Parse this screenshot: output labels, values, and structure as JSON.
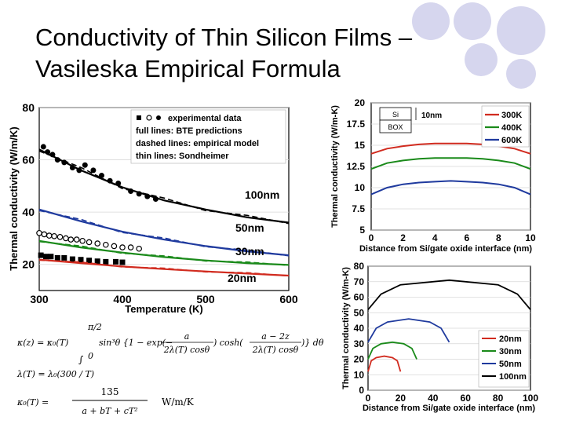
{
  "title": {
    "line1": "Conductivity of Thin Silicon Films –",
    "line2": "Vasileska Empirical Formula"
  },
  "chart_data": [
    {
      "type": "line",
      "xlabel": "Temperature (K)",
      "ylabel": "Thermal conductivity (W/m/K)",
      "xlim": [
        300,
        600
      ],
      "ylim": [
        10,
        80
      ],
      "xticks": [
        "300",
        "400",
        "500",
        "600"
      ],
      "yticks": [
        "20",
        "40",
        "60",
        "80"
      ],
      "legend_lines": [
        "experimental data",
        "full lines: BTE predictions",
        "dashed lines: empirical model",
        "thin lines: Sondheimer"
      ],
      "x": [
        300,
        350,
        400,
        450,
        500,
        550,
        600
      ],
      "series": [
        {
          "name": "100nm",
          "color": "#000000",
          "values": [
            64,
            56,
            49.5,
            44.5,
            41,
            38,
            36
          ]
        },
        {
          "name": "50nm",
          "color": "#1f3a9e",
          "values": [
            41,
            36.5,
            32.5,
            29.5,
            27,
            25,
            23.5
          ]
        },
        {
          "name": "30nm",
          "color": "#1a8a1a",
          "values": [
            29,
            26.5,
            24.5,
            22.8,
            21.5,
            20.5,
            19.8
          ]
        },
        {
          "name": "20nm",
          "color": "#d12b1f",
          "values": [
            21.8,
            20.5,
            19.2,
            18.2,
            17.3,
            16.5,
            15.7
          ]
        }
      ],
      "experimental": [
        {
          "marker": "filled-circle",
          "x": [
            305,
            310,
            316,
            322,
            330,
            340,
            348,
            355,
            365,
            375,
            385,
            395,
            410,
            420,
            430,
            440
          ],
          "y": [
            65,
            63,
            62,
            60,
            59,
            57,
            56,
            58,
            56,
            54,
            52,
            51,
            48,
            47,
            46,
            45
          ]
        },
        {
          "marker": "open-circle",
          "x": [
            300,
            306,
            312,
            318,
            325,
            332,
            338,
            345,
            352,
            360,
            370,
            380,
            390,
            400,
            410,
            420
          ],
          "y": [
            32,
            31.5,
            31,
            30.8,
            30.5,
            30,
            29.5,
            29.5,
            29,
            28.5,
            28,
            27.5,
            27,
            26.5,
            26.5,
            26
          ]
        },
        {
          "marker": "filled-square",
          "x": [
            302,
            308,
            314,
            322,
            330,
            340,
            350,
            360,
            370,
            380,
            392,
            400
          ],
          "y": [
            23.5,
            23,
            23,
            22.5,
            22.5,
            22,
            21.8,
            21.5,
            21.2,
            21,
            21,
            20.8
          ]
        }
      ]
    },
    {
      "type": "line",
      "xlabel": "Distance from Si/gate oxide interface (nm)",
      "ylabel": "Thermal conductivity (W/m-K)",
      "xlim": [
        0,
        10
      ],
      "ylim": [
        5,
        20
      ],
      "xticks": [
        "0",
        "2",
        "4",
        "6",
        "8",
        "10"
      ],
      "yticks": [
        "5",
        "7.5",
        "10",
        "12.5",
        "15",
        "17.5",
        "20"
      ],
      "inset": {
        "layer1": "Si",
        "layer2": "BOX",
        "thickness": "10nm"
      },
      "x": [
        0,
        1,
        2,
        3,
        4,
        5,
        6,
        7,
        8,
        9,
        10
      ],
      "series": [
        {
          "name": "300K",
          "color": "#d12b1f",
          "values": [
            14.0,
            14.6,
            14.9,
            15.1,
            15.2,
            15.2,
            15.2,
            15.1,
            14.9,
            14.6,
            14.0
          ]
        },
        {
          "name": "400K",
          "color": "#1a8a1a",
          "values": [
            12.2,
            12.9,
            13.2,
            13.4,
            13.5,
            13.5,
            13.5,
            13.4,
            13.2,
            12.9,
            12.2
          ]
        },
        {
          "name": "600K",
          "color": "#1f3a9e",
          "values": [
            9.2,
            10.0,
            10.4,
            10.6,
            10.7,
            10.8,
            10.7,
            10.6,
            10.4,
            10.0,
            9.2
          ]
        }
      ]
    },
    {
      "type": "line",
      "xlabel": "Distance from Si/gate oxide interface (nm)",
      "ylabel": "Thermal conductivity (W/m-K)",
      "xlim": [
        0,
        100
      ],
      "ylim": [
        0,
        80
      ],
      "xticks": [
        "0",
        "20",
        "40",
        "60",
        "80",
        "100"
      ],
      "yticks": [
        "0",
        "10",
        "20",
        "30",
        "40",
        "50",
        "60",
        "70",
        "80"
      ],
      "series": [
        {
          "name": "20nm",
          "color": "#d12b1f",
          "x": [
            0,
            2,
            5,
            10,
            15,
            18,
            20
          ],
          "values": [
            12,
            19,
            21,
            22,
            21,
            19,
            12
          ]
        },
        {
          "name": "30nm",
          "color": "#1a8a1a",
          "x": [
            0,
            3,
            8,
            15,
            22,
            27,
            30
          ],
          "values": [
            20,
            27,
            30,
            31,
            30,
            27,
            20
          ]
        },
        {
          "name": "50nm",
          "color": "#1f3a9e",
          "x": [
            0,
            5,
            12,
            25,
            38,
            45,
            50
          ],
          "values": [
            31,
            40,
            44,
            46,
            44,
            40,
            31
          ]
        },
        {
          "name": "100nm",
          "color": "#000000",
          "x": [
            0,
            8,
            20,
            50,
            80,
            92,
            100
          ],
          "values": [
            52,
            62,
            68,
            71,
            68,
            62,
            52
          ]
        }
      ]
    }
  ],
  "equations": {
    "kappa_lhs": "κ(z) = κ₀(T)",
    "kappa_upper": "π/2",
    "kappa_lower": "0",
    "kappa_body": "sin³θ {1 − exp(−",
    "kappa_num1": "a",
    "kappa_den1": "2λ(T) cosθ",
    "kappa_mid": ") cosh(",
    "kappa_num2": "a − 2z",
    "kappa_den2": "2λ(T) cosθ",
    "kappa_end": ")} dθ",
    "lambda": "λ(T) = λ₀(300 / T)",
    "k0_lhs": "κ₀(T) =",
    "k0_num": "135",
    "k0_den": "a + bT + cT²",
    "k0_units": "W/m/K"
  }
}
